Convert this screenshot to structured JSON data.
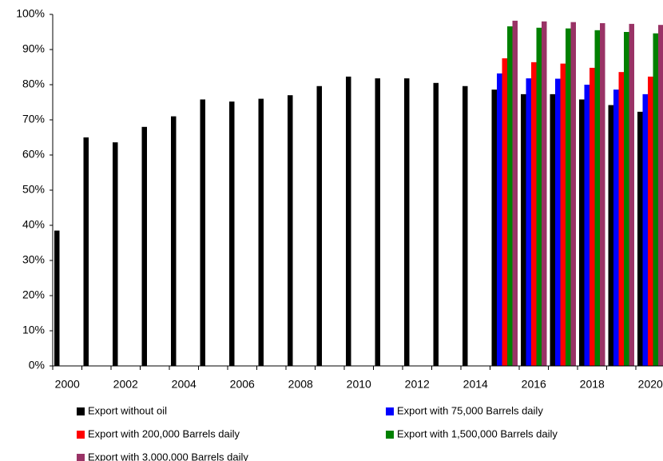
{
  "chart_data": {
    "type": "bar",
    "categories": [
      "2000",
      null,
      "2002",
      null,
      "2004",
      null,
      "2006",
      null,
      "2008",
      null,
      "2010",
      null,
      "2012",
      null,
      "2014",
      null,
      "2016",
      null,
      "2018",
      null,
      "2020"
    ],
    "series": [
      {
        "name": "Export without oil",
        "color": "#000000",
        "values": [
          38.5,
          65,
          63.6,
          68,
          71,
          75.8,
          75.2,
          76,
          77,
          79.6,
          82.3,
          81.8,
          81.8,
          80.5,
          79.6,
          78.6,
          77.3,
          77.3,
          75.8,
          74.2,
          72.3
        ]
      },
      {
        "name": "Export with 75,000 Barrels daily",
        "color": "#0000ff",
        "values": [
          null,
          null,
          null,
          null,
          null,
          null,
          null,
          null,
          null,
          null,
          null,
          null,
          null,
          null,
          null,
          83.2,
          81.8,
          81.7,
          80,
          78.6,
          77.3
        ]
      },
      {
        "name": "Export with 200,000 Barrels daily",
        "color": "#ff0000",
        "values": [
          null,
          null,
          null,
          null,
          null,
          null,
          null,
          null,
          null,
          null,
          null,
          null,
          null,
          null,
          null,
          87.5,
          86.4,
          86,
          84.8,
          83.6,
          82.3
        ]
      },
      {
        "name": "Export with 1,500,000 Barrels daily",
        "color": "#008000",
        "values": [
          null,
          null,
          null,
          null,
          null,
          null,
          null,
          null,
          null,
          null,
          null,
          null,
          null,
          null,
          null,
          96.6,
          96.2,
          96,
          95.5,
          95,
          94.6
        ]
      },
      {
        "name": "Export with 3,000,000 Barrels daily",
        "color": "#993366",
        "values": [
          null,
          null,
          null,
          null,
          null,
          null,
          null,
          null,
          null,
          null,
          null,
          null,
          null,
          null,
          null,
          98.2,
          98,
          97.8,
          97.5,
          97.3,
          97
        ]
      }
    ],
    "ylim": [
      0,
      100
    ],
    "yticks": [
      {
        "value": 0,
        "label": "0%"
      },
      {
        "value": 10,
        "label": "10%"
      },
      {
        "value": 20,
        "label": "20%"
      },
      {
        "value": 30,
        "label": "30%"
      },
      {
        "value": 40,
        "label": "40%"
      },
      {
        "value": 50,
        "label": "50%"
      },
      {
        "value": 60,
        "label": "60%"
      },
      {
        "value": 70,
        "label": "70%"
      },
      {
        "value": 80,
        "label": "80%"
      },
      {
        "value": 90,
        "label": "90%"
      },
      {
        "value": 100,
        "label": "100%"
      }
    ],
    "grid": false,
    "legend": "bottom"
  }
}
